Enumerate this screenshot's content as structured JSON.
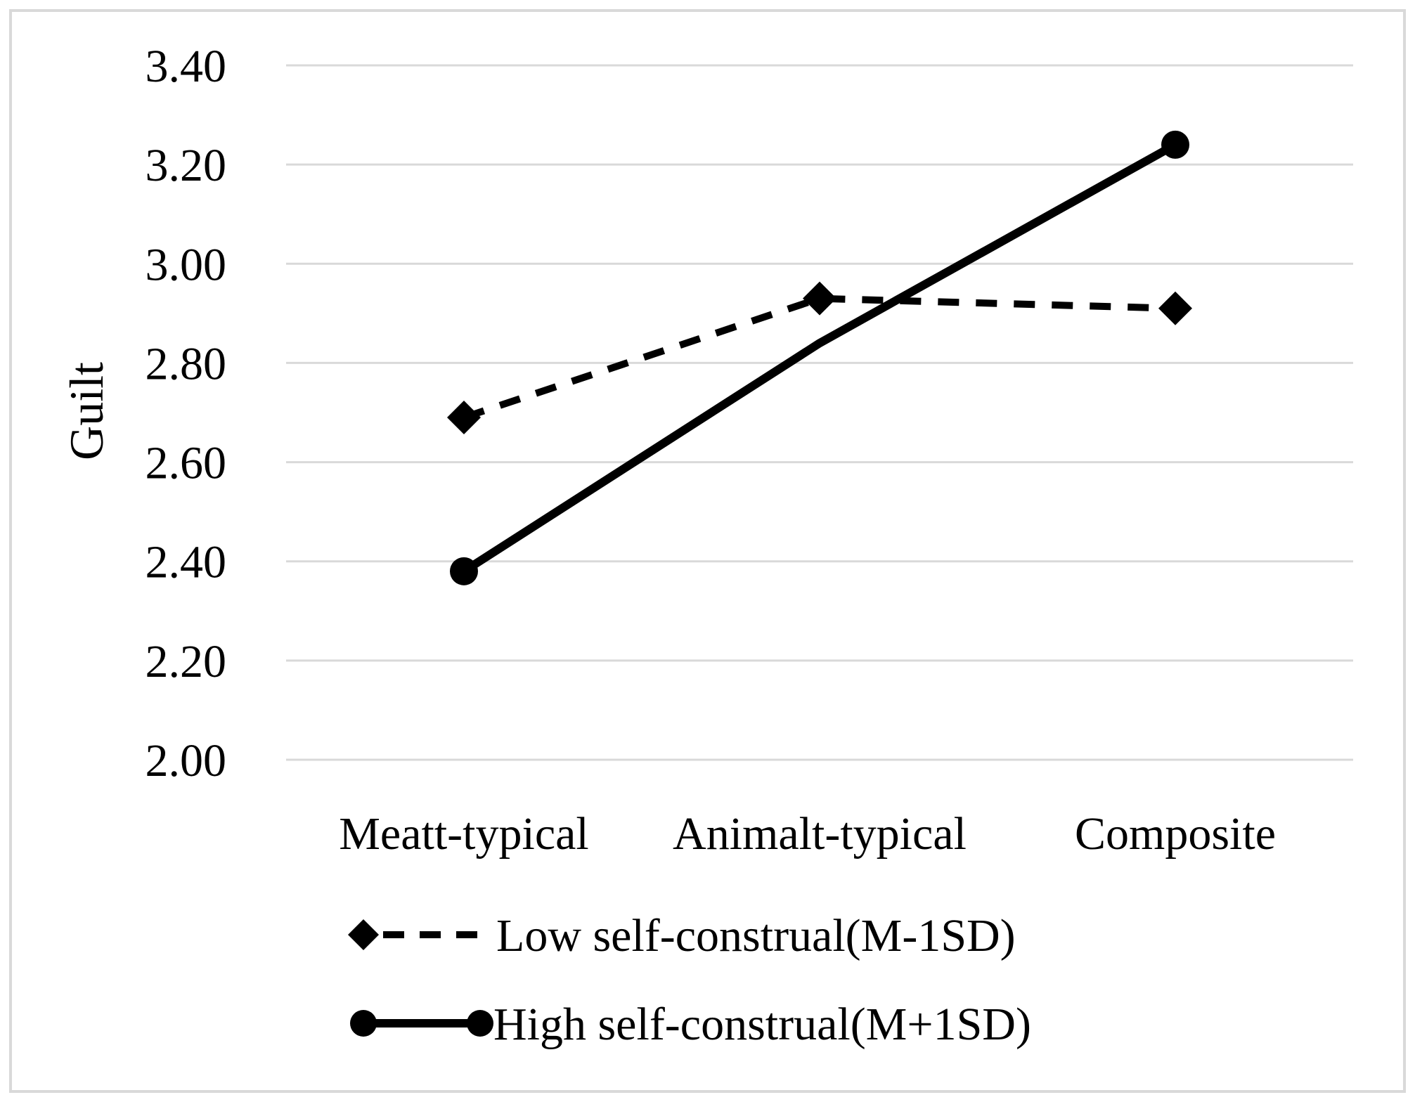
{
  "chart_data": {
    "type": "line",
    "title": "",
    "ylabel": "Guilt",
    "xlabel": "",
    "categories": [
      "Meatt-typical",
      "Animalt-typical",
      "Composite"
    ],
    "series": [
      {
        "name": "Low self-construal(M-1SD)",
        "values": [
          2.69,
          2.93,
          2.91
        ],
        "line_style": "dashed",
        "marker": "diamond",
        "marker_at": [
          0,
          1,
          2
        ]
      },
      {
        "name": "High self-construal(M+1SD)",
        "values": [
          2.38,
          2.84,
          3.24
        ],
        "line_style": "solid",
        "marker": "circle",
        "marker_at": [
          0,
          2
        ]
      }
    ],
    "ylim": [
      2.0,
      3.4
    ],
    "yticks": [
      2.0,
      2.2,
      2.4,
      2.6,
      2.8,
      3.0,
      3.2,
      3.4
    ],
    "ytick_labels": [
      "2.00",
      "2.20",
      "2.40",
      "2.60",
      "2.80",
      "3.00",
      "3.20",
      "3.40"
    ],
    "grid": true,
    "legend_position": "bottom-left",
    "colors": {
      "series": "#000000",
      "grid": "#d9d9d9",
      "text": "#000000",
      "frame": "#d9d9d9",
      "background": "#ffffff"
    }
  }
}
